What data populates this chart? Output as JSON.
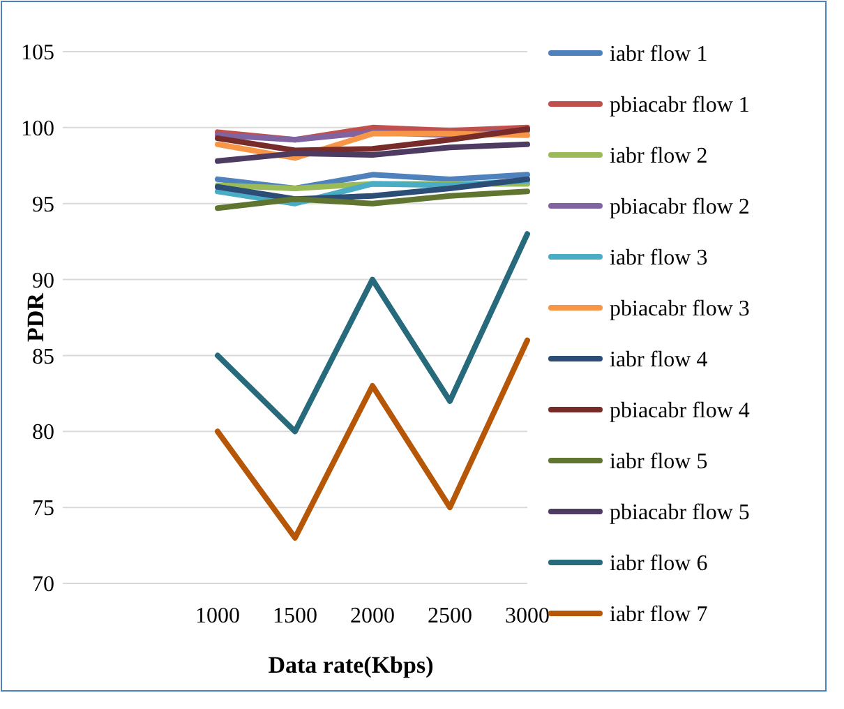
{
  "chart_data": {
    "type": "line",
    "xlabel": "Data rate(Kbps)",
    "ylabel": "PDR",
    "categories": [
      null,
      null,
      "1000",
      "1500",
      "2000",
      "2500",
      "3000"
    ],
    "ylim": [
      70,
      105
    ],
    "yticks": [
      70,
      75,
      80,
      85,
      90,
      95,
      100,
      105
    ],
    "grid": "y",
    "legend": "right",
    "marker": "none",
    "line_style": "solid",
    "series": [
      {
        "name": "iabr flow 1",
        "color": "#4f81bd",
        "values": [
          null,
          null,
          96.6,
          96.0,
          96.9,
          96.6,
          96.9
        ]
      },
      {
        "name": "pbiacabr flow 1",
        "color": "#c0504d",
        "values": [
          null,
          null,
          99.7,
          99.2,
          100,
          99.8,
          100
        ]
      },
      {
        "name": "iabr flow 2",
        "color": "#9bbb59",
        "values": [
          null,
          null,
          96.2,
          96.0,
          96.3,
          96.3,
          96.3
        ]
      },
      {
        "name": "pbiacabr flow 2",
        "color": "#8064a2",
        "values": [
          null,
          null,
          99.5,
          99.2,
          99.7,
          99.5,
          99.8
        ]
      },
      {
        "name": "iabr flow 3",
        "color": "#4bacc6",
        "values": [
          null,
          null,
          95.8,
          95.0,
          96.3,
          96.2,
          96.5
        ]
      },
      {
        "name": "pbiacabr flow 3",
        "color": "#f79646",
        "values": [
          null,
          null,
          98.9,
          98.0,
          99.6,
          99.6,
          99.5
        ]
      },
      {
        "name": "iabr flow 4",
        "color": "#2c4d75",
        "values": [
          null,
          null,
          96.1,
          95.3,
          95.5,
          96.0,
          96.6
        ]
      },
      {
        "name": "pbiacabr flow 4",
        "color": "#772c2a",
        "values": [
          null,
          null,
          99.3,
          98.5,
          98.6,
          99.2,
          99.9
        ]
      },
      {
        "name": "iabr flow 5",
        "color": "#5f7530",
        "values": [
          null,
          null,
          94.7,
          95.3,
          95.0,
          95.5,
          95.8
        ]
      },
      {
        "name": "pbiacabr flow 5",
        "color": "#4d3b62",
        "values": [
          null,
          null,
          97.8,
          98.3,
          98.2,
          98.7,
          98.9
        ]
      },
      {
        "name": "iabr flow 6",
        "color": "#276a7c",
        "values": [
          null,
          null,
          85,
          80,
          90,
          82,
          93
        ]
      },
      {
        "name": "iabr flow 7",
        "color": "#b65708",
        "values": [
          null,
          null,
          80,
          73,
          83,
          75,
          86
        ]
      }
    ]
  }
}
